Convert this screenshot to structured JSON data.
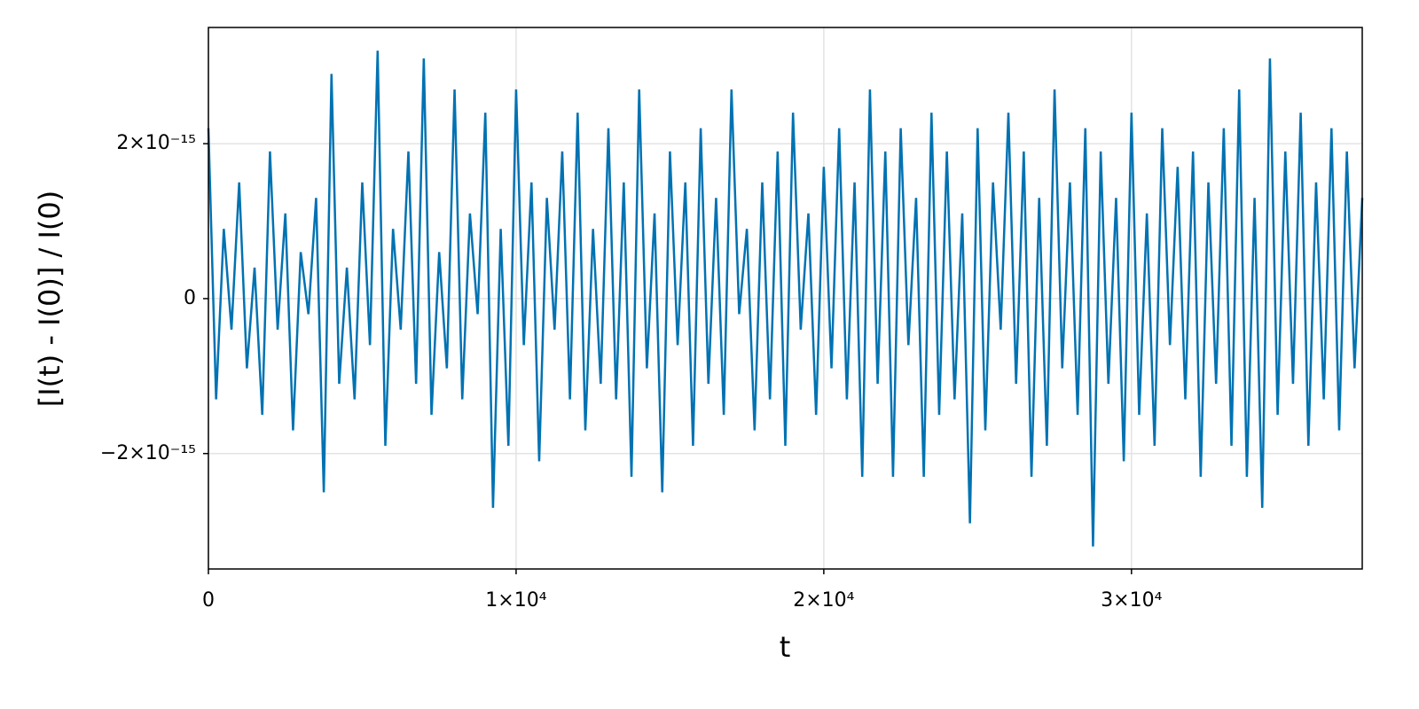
{
  "chart_data": {
    "type": "line",
    "xlabel": "t",
    "ylabel": "[I(t) - I(0)] / I(0)",
    "xlim": [
      0,
      37500
    ],
    "ylim": [
      -3.49e-15,
      3.5e-15
    ],
    "xticks": [
      0,
      {
        "value": 10000,
        "label": "1×10⁴"
      },
      {
        "value": 20000,
        "label": "2×10⁴"
      },
      {
        "value": 30000,
        "label": "3×10⁴"
      }
    ],
    "yticks": [
      {
        "value": -2e-15,
        "label": "−2×10⁻¹⁵"
      },
      0,
      {
        "value": 2e-15,
        "label": "2×10⁻¹⁵"
      }
    ],
    "grid": true,
    "x": [
      0,
      250,
      500,
      750,
      1000,
      1250,
      1500,
      1750,
      2000,
      2250,
      2500,
      2750,
      3000,
      3250,
      3500,
      3750,
      4000,
      4250,
      4500,
      4750,
      5000,
      5250,
      5500,
      5750,
      6000,
      6250,
      6500,
      6750,
      7000,
      7250,
      7500,
      7750,
      8000,
      8250,
      8500,
      8750,
      9000,
      9250,
      9500,
      9750,
      10000,
      10250,
      10500,
      10750,
      11000,
      11250,
      11500,
      11750,
      12000,
      12250,
      12500,
      12750,
      13000,
      13250,
      13500,
      13750,
      14000,
      14250,
      14500,
      14750,
      15000,
      15250,
      15500,
      15750,
      16000,
      16250,
      16500,
      16750,
      17000,
      17250,
      17500,
      17750,
      18000,
      18250,
      18500,
      18750,
      19000,
      19250,
      19500,
      19750,
      20000,
      20250,
      20500,
      20750,
      21000,
      21250,
      21500,
      21750,
      22000,
      22250,
      22500,
      22750,
      23000,
      23250,
      23500,
      23750,
      24000,
      24250,
      24500,
      24750,
      25000,
      25250,
      25500,
      25750,
      26000,
      26250,
      26500,
      26750,
      27000,
      27250,
      27500,
      27750,
      28000,
      28250,
      28500,
      28750,
      29000,
      29250,
      29500,
      29750,
      30000,
      30250,
      30500,
      30750,
      31000,
      31250,
      31500,
      31750,
      32000,
      32250,
      32500,
      32750,
      33000,
      33250,
      33500,
      33750,
      34000,
      34250,
      34500,
      34750,
      35000,
      35250,
      35500,
      35750,
      36000,
      36250,
      36500,
      36750,
      37000,
      37250,
      37500
    ],
    "series": [
      {
        "name": "I",
        "color": "#0072b2",
        "values": [
          2.2e-15,
          -1.3e-15,
          9e-16,
          -4e-16,
          1.5e-15,
          -9e-16,
          4e-16,
          -1.5e-15,
          1.9e-15,
          -4e-16,
          1.1e-15,
          -1.7e-15,
          6e-16,
          -2e-16,
          1.3e-15,
          -2.5e-15,
          2.9e-15,
          -1.1e-15,
          4e-16,
          -1.3e-15,
          1.5e-15,
          -6e-16,
          3.2e-15,
          -1.9e-15,
          9e-16,
          -4e-16,
          1.9e-15,
          -1.1e-15,
          3.1e-15,
          -1.5e-15,
          6e-16,
          -9e-16,
          2.7e-15,
          -1.3e-15,
          1.1e-15,
          -2e-16,
          2.4e-15,
          -2.7e-15,
          9e-16,
          -1.9e-15,
          2.7e-15,
          -6e-16,
          1.5e-15,
          -2.1e-15,
          1.3e-15,
          -4e-16,
          1.9e-15,
          -1.3e-15,
          2.4e-15,
          -1.7e-15,
          9e-16,
          -1.1e-15,
          2.2e-15,
          -1.3e-15,
          1.5e-15,
          -2.3e-15,
          2.7e-15,
          -9e-16,
          1.1e-15,
          -2.5e-15,
          1.9e-15,
          -6e-16,
          1.5e-15,
          -1.9e-15,
          2.2e-15,
          -1.1e-15,
          1.3e-15,
          -1.5e-15,
          2.7e-15,
          -2e-16,
          9e-16,
          -1.7e-15,
          1.5e-15,
          -1.3e-15,
          1.9e-15,
          -1.9e-15,
          2.4e-15,
          -4e-16,
          1.1e-15,
          -1.5e-15,
          1.7e-15,
          -9e-16,
          2.2e-15,
          -1.3e-15,
          1.5e-15,
          -2.3e-15,
          2.7e-15,
          -1.1e-15,
          1.9e-15,
          -2.3e-15,
          2.2e-15,
          -6e-16,
          1.3e-15,
          -2.3e-15,
          2.4e-15,
          -1.5e-15,
          1.9e-15,
          -1.3e-15,
          1.1e-15,
          -2.9e-15,
          2.2e-15,
          -1.7e-15,
          1.5e-15,
          -4e-16,
          2.4e-15,
          -1.1e-15,
          1.9e-15,
          -2.3e-15,
          1.3e-15,
          -1.9e-15,
          2.7e-15,
          -9e-16,
          1.5e-15,
          -1.5e-15,
          2.2e-15,
          -3.2e-15,
          1.9e-15,
          -1.1e-15,
          1.3e-15,
          -2.1e-15,
          2.4e-15,
          -1.5e-15,
          1.1e-15,
          -1.9e-15,
          2.2e-15,
          -6e-16,
          1.7e-15,
          -1.3e-15,
          1.9e-15,
          -2.3e-15,
          1.5e-15,
          -1.1e-15,
          2.2e-15,
          -1.9e-15,
          2.7e-15,
          -2.3e-15,
          1.3e-15,
          -2.7e-15,
          3.1e-15,
          -1.5e-15,
          1.9e-15,
          -1.1e-15,
          2.4e-15,
          -1.9e-15,
          1.5e-15,
          -1.3e-15,
          2.2e-15,
          -1.7e-15,
          1.9e-15,
          -9e-16,
          1.3e-15
        ]
      }
    ]
  }
}
